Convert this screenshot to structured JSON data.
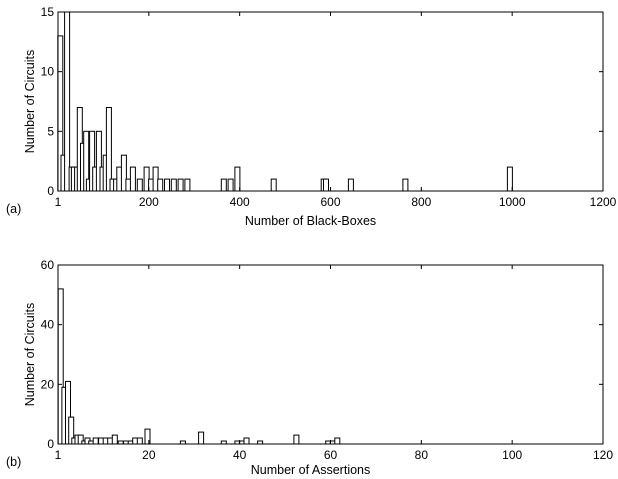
{
  "chart_data": [
    {
      "type": "bar",
      "panel_label": "(a)",
      "xlabel": "Number of Black-Boxes",
      "ylabel": "Number of Circuits",
      "xlim": [
        0,
        1200
      ],
      "ylim": [
        0,
        15
      ],
      "xticks": [
        1,
        200,
        400,
        600,
        800,
        1000,
        1200
      ],
      "xtick_labels": [
        "1",
        "200",
        "400",
        "600",
        "800",
        "1000",
        "1200"
      ],
      "yticks": [
        0,
        5,
        10,
        15
      ],
      "ytick_labels": [
        "0",
        "5",
        "10",
        "15"
      ],
      "grid": false,
      "x": [
        5,
        12,
        20,
        30,
        35,
        42,
        48,
        55,
        62,
        68,
        75,
        82,
        90,
        98,
        105,
        112,
        120,
        128,
        135,
        145,
        155,
        165,
        180,
        195,
        205,
        215,
        225,
        240,
        255,
        270,
        285,
        365,
        380,
        395,
        475,
        585,
        590,
        645,
        765,
        995
      ],
      "values": [
        13,
        3,
        15,
        2,
        2,
        2,
        7,
        4,
        5,
        1,
        5,
        2,
        5,
        2,
        3,
        7,
        1,
        1,
        2,
        3,
        1,
        2,
        1,
        2,
        1,
        2,
        1,
        1,
        1,
        1,
        1,
        1,
        1,
        2,
        1,
        1,
        1,
        1,
        1,
        2
      ]
    },
    {
      "type": "bar",
      "panel_label": "(b)",
      "xlabel": "Number of Assertions",
      "ylabel": "Number of Circuits",
      "xlim": [
        0,
        120
      ],
      "ylim": [
        0,
        60
      ],
      "xticks": [
        1,
        20,
        40,
        60,
        80,
        100,
        120
      ],
      "xtick_labels": [
        "1",
        "20",
        "40",
        "60",
        "80",
        "100",
        "120"
      ],
      "yticks": [
        0,
        20,
        40,
        60
      ],
      "ytick_labels": [
        "0",
        "20",
        "40",
        "60"
      ],
      "grid": false,
      "x": [
        0.6,
        1.4,
        2.2,
        2.9,
        3.6,
        4.3,
        5.0,
        5.8,
        6.5,
        7.3,
        8.3,
        9.5,
        10.5,
        11.5,
        12.5,
        13.8,
        15.0,
        16.0,
        17.0,
        18.0,
        19.7,
        27.5,
        31.5,
        36.5,
        39.5,
        40.5,
        41.5,
        44.5,
        52.5,
        59.5,
        60.5,
        61.5
      ],
      "values": [
        52,
        19,
        21,
        9,
        2,
        3,
        3,
        1,
        2,
        1,
        2,
        2,
        2,
        2,
        3,
        1,
        1,
        1,
        2,
        2,
        5,
        1,
        4,
        1,
        1,
        1,
        2,
        1,
        3,
        1,
        1,
        2
      ]
    }
  ]
}
